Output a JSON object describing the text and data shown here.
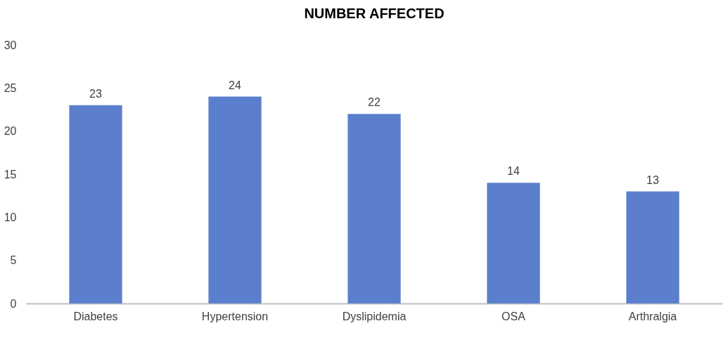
{
  "chart_data": {
    "type": "bar",
    "title": "NUMBER AFFECTED",
    "categories": [
      "Diabetes",
      "Hypertension",
      "Dyslipidemia",
      "OSA",
      "Arthralgia"
    ],
    "values": [
      23,
      24,
      22,
      14,
      13
    ],
    "color": "#5b7fcc",
    "ylim": [
      0,
      30
    ],
    "yticks": [
      0,
      5,
      10,
      15,
      20,
      25,
      30
    ],
    "grid": false,
    "data_labels": true
  }
}
